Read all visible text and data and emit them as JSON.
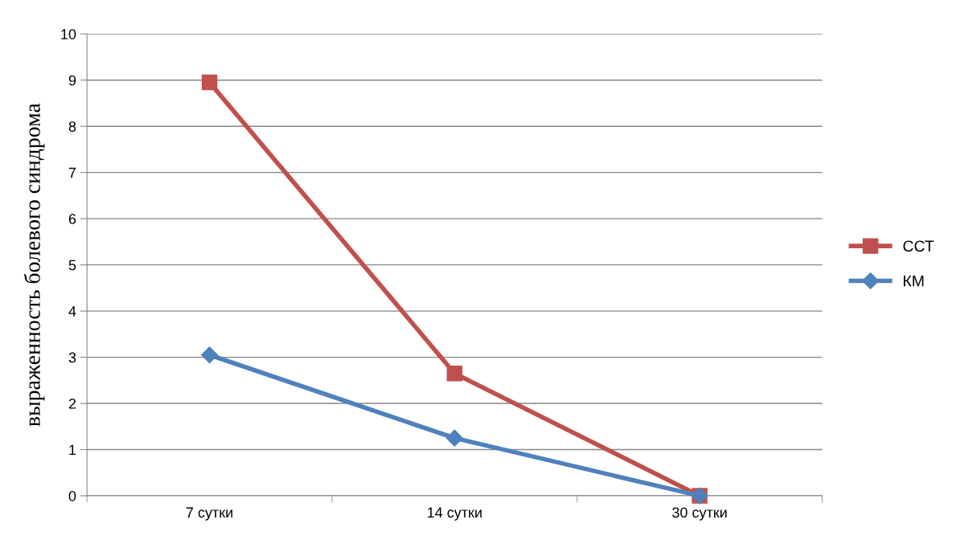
{
  "chart_data": {
    "type": "line",
    "ylabel": "выраженность болевого синдрома",
    "categories": [
      "7 сутки",
      "14 сутки",
      "30 сутки"
    ],
    "series": [
      {
        "name": "ССТ",
        "color": "#c0504d",
        "marker": "square",
        "values": [
          8.95,
          2.65,
          0
        ]
      },
      {
        "name": "КМ",
        "color": "#4f81bd",
        "marker": "diamond",
        "values": [
          3.05,
          1.25,
          0
        ]
      }
    ],
    "ylim": [
      0,
      10
    ],
    "yticks": [
      0,
      1,
      2,
      3,
      4,
      5,
      6,
      7,
      8,
      9,
      10
    ],
    "grid": "y",
    "legend": "right",
    "line_style": "solid"
  }
}
